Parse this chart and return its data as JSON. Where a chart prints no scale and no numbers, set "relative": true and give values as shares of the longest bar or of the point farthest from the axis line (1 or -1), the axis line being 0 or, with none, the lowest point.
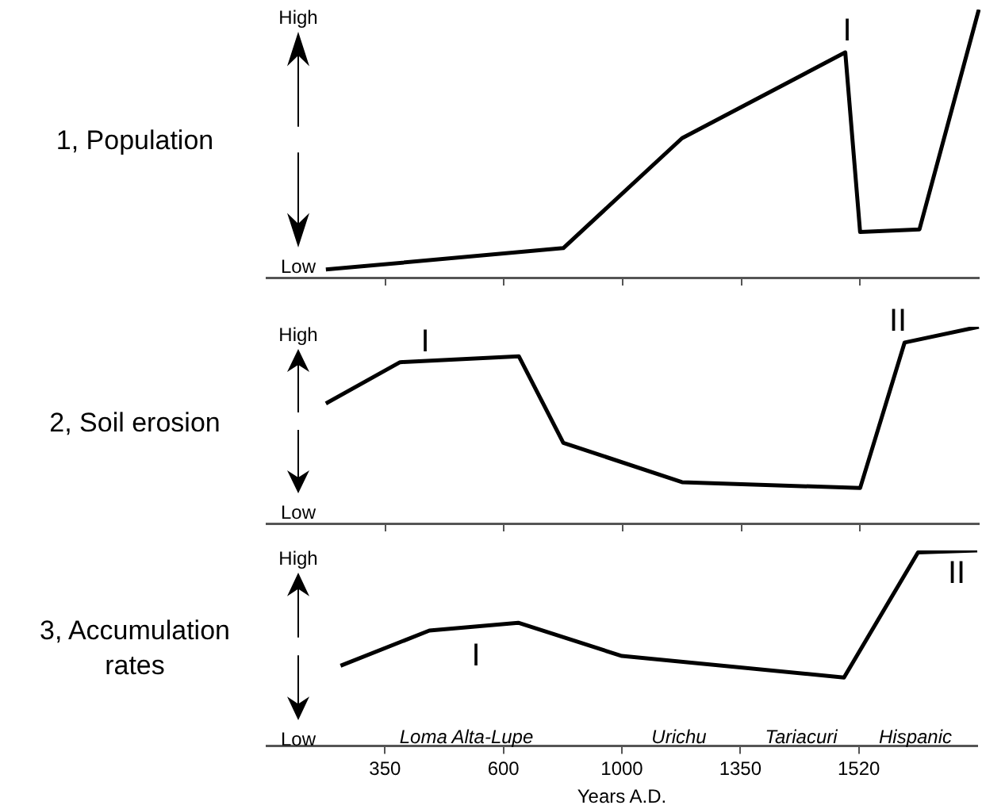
{
  "chart_data": [
    {
      "type": "line",
      "ylabel": "1, Population",
      "relative": true,
      "color": "#000000",
      "tick_labels": false,
      "categories": [
        null,
        null,
        null,
        null,
        null,
        null,
        null,
        null,
        "350",
        null,
        null,
        null,
        null,
        null,
        null,
        null,
        "600",
        null,
        null,
        null,
        null,
        null,
        null,
        null,
        "1000",
        null,
        null,
        null,
        null,
        null,
        null,
        null,
        "1350",
        null,
        null,
        null,
        null,
        null,
        null,
        null,
        "1520",
        null,
        null,
        null,
        null,
        null,
        null,
        null,
        null
      ],
      "values": [
        null,
        null,
        null,
        null,
        0.03,
        null,
        null,
        null,
        null,
        null,
        null,
        null,
        null,
        null,
        null,
        null,
        null,
        null,
        null,
        null,
        0.11,
        null,
        null,
        null,
        null,
        null,
        null,
        null,
        0.52,
        null,
        null,
        null,
        null,
        null,
        null,
        null,
        null,
        null,
        null,
        0.84,
        0.17,
        null,
        null,
        null,
        0.18,
        null,
        null,
        null,
        1.0
      ],
      "annotations": [
        "High",
        "Low",
        "I"
      ]
    },
    {
      "type": "line",
      "ylabel": "2, Soil erosion",
      "relative": true,
      "color": "#000000",
      "tick_labels": false,
      "categories": [
        null,
        null,
        null,
        null,
        null,
        null,
        null,
        null,
        "350",
        null,
        null,
        null,
        null,
        null,
        null,
        null,
        "600",
        null,
        null,
        null,
        null,
        null,
        null,
        null,
        "1000",
        null,
        null,
        null,
        null,
        null,
        null,
        null,
        "1350",
        null,
        null,
        null,
        null,
        null,
        null,
        null,
        "1520",
        null,
        null,
        null,
        null,
        null,
        null,
        null,
        null
      ],
      "values": [
        null,
        null,
        null,
        null,
        0.61,
        null,
        null,
        null,
        null,
        0.82,
        null,
        null,
        null,
        null,
        null,
        null,
        null,
        0.85,
        null,
        null,
        0.41,
        null,
        null,
        null,
        null,
        null,
        null,
        null,
        0.21,
        null,
        null,
        null,
        null,
        null,
        null,
        null,
        null,
        null,
        null,
        null,
        0.18,
        null,
        null,
        0.92,
        null,
        null,
        null,
        null,
        1.0
      ],
      "annotations": [
        "High",
        "Low",
        "I",
        "II"
      ]
    },
    {
      "type": "line",
      "ylabel": "3, Accumulation rates",
      "xlabel": "Years A.D.",
      "relative": true,
      "color": "#000000",
      "categories": [
        null,
        null,
        null,
        null,
        null,
        null,
        null,
        null,
        "350",
        null,
        null,
        null,
        null,
        null,
        null,
        null,
        "600",
        null,
        null,
        null,
        null,
        null,
        null,
        null,
        "1000",
        null,
        null,
        null,
        null,
        null,
        null,
        null,
        "1350",
        null,
        null,
        null,
        null,
        null,
        null,
        null,
        "1520",
        null,
        null,
        null,
        null,
        null,
        null,
        null,
        null
      ],
      "values": [
        null,
        null,
        null,
        null,
        null,
        0.41,
        null,
        null,
        null,
        null,
        null,
        0.59,
        null,
        null,
        null,
        null,
        null,
        0.63,
        null,
        null,
        null,
        null,
        null,
        null,
        0.46,
        null,
        null,
        null,
        null,
        null,
        null,
        null,
        null,
        null,
        null,
        null,
        null,
        null,
        null,
        0.35,
        null,
        null,
        null,
        null,
        0.99,
        null,
        null,
        null,
        1.0
      ],
      "annotations": [
        "High",
        "Low",
        "I",
        "II",
        "Loma Alta-Lupe",
        "Urichu",
        "Tariacuri",
        "Hispanic"
      ]
    }
  ]
}
